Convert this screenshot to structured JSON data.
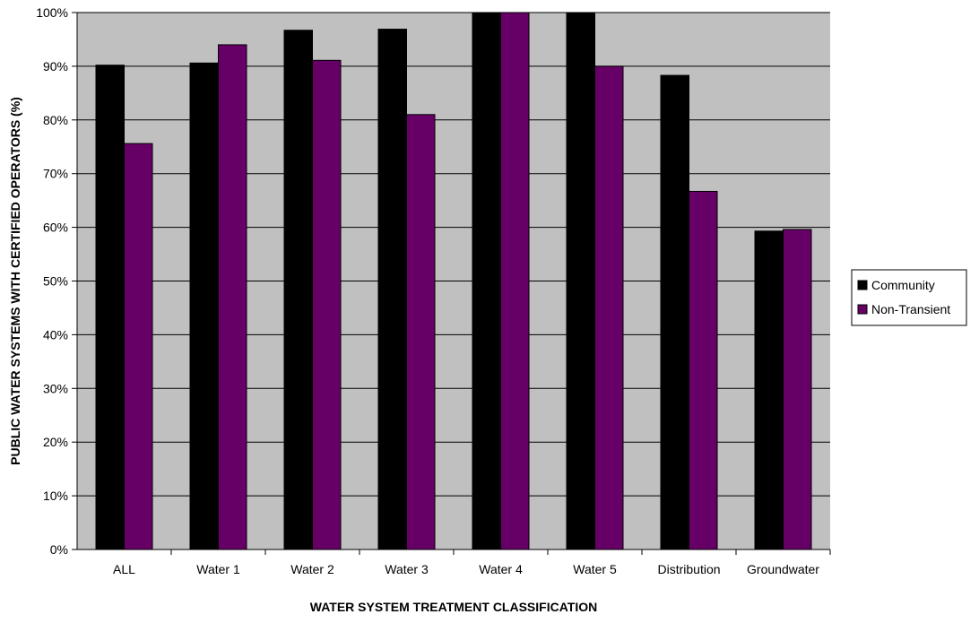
{
  "chart_data": {
    "type": "bar",
    "title": "",
    "xlabel": "WATER SYSTEM TREATMENT CLASSIFICATION",
    "ylabel": "PUBLIC WATER SYSTEMS WITH CERTIFIED OPERATORS (%)",
    "categories": [
      "ALL",
      "Water 1",
      "Water 2",
      "Water 3",
      "Water 4",
      "Water 5",
      "Distribution",
      "Groundwater"
    ],
    "series": [
      {
        "name": "Community",
        "color": "#000000",
        "values": [
          90.2,
          90.6,
          96.7,
          96.9,
          100,
          100,
          88.3,
          59.3
        ]
      },
      {
        "name": "Non-Transient",
        "color": "#660066",
        "values": [
          75.6,
          94.0,
          91.1,
          81.0,
          100,
          90.0,
          66.7,
          59.6
        ]
      }
    ],
    "ylim": [
      0,
      100
    ],
    "yticks": [
      "0%",
      "10%",
      "20%",
      "30%",
      "40%",
      "50%",
      "60%",
      "70%",
      "80%",
      "90%",
      "100%"
    ],
    "grid": true,
    "plot_background": "#c0c0c0",
    "legend_position": "right"
  }
}
